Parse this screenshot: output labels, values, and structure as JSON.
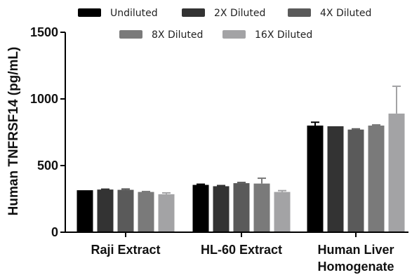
{
  "chart_data": {
    "type": "bar",
    "title": "",
    "xlabel": "",
    "ylabel": "Human TNFRSF14 (pg/mL)",
    "ylim": [
      0,
      1500
    ],
    "yticks": [
      "0",
      "500",
      "1000",
      "1500"
    ],
    "ytick_values": [
      0,
      500,
      1000,
      1500
    ],
    "grid": false,
    "legend_position": "top",
    "categories": [
      [
        "Raji Extract"
      ],
      [
        "HL-60 Extract"
      ],
      [
        "Human Liver",
        "Homogenate"
      ]
    ],
    "series": [
      {
        "name": "Undiluted",
        "color": "#000000",
        "values": [
          315,
          355,
          800
        ],
        "errors": [
          0,
          5,
          25
        ]
      },
      {
        "name": "2X Diluted",
        "color": "#333333",
        "values": [
          320,
          345,
          795
        ],
        "errors": [
          3,
          5,
          0
        ]
      },
      {
        "name": "4X Diluted",
        "color": "#5a5a5a",
        "values": [
          318,
          368,
          770
        ],
        "errors": [
          6,
          5,
          5
        ]
      },
      {
        "name": "8X Diluted",
        "color": "#7a7a7a",
        "values": [
          302,
          365,
          800
        ],
        "errors": [
          3,
          40,
          5
        ]
      },
      {
        "name": "16X Diluted",
        "color": "#a3a3a5",
        "values": [
          285,
          302,
          890
        ],
        "errors": [
          10,
          10,
          205
        ]
      }
    ]
  }
}
